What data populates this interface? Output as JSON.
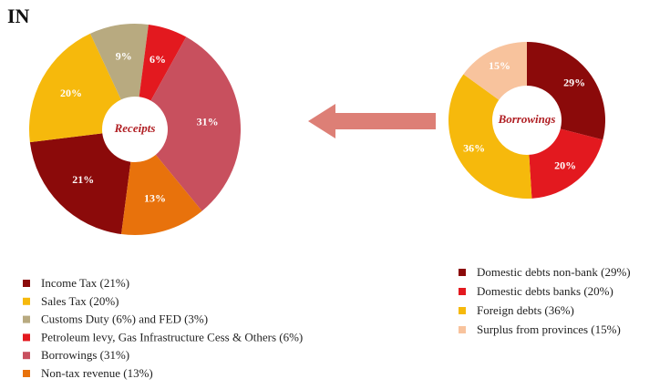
{
  "title": "IN",
  "chart_data": [
    {
      "type": "donut",
      "center_label": "Receipts",
      "categories": [
        "Income Tax (21%)",
        "Sales Tax (20%)",
        "Customs Duty (6%) and FED (3%)",
        "Petroleum levy, Gas Infrastructure Cess & Others (6%)",
        "Borrowings (31%)",
        "Non-tax revenue (13%)"
      ],
      "values": [
        21,
        20,
        9,
        6,
        31,
        13
      ],
      "value_labels": [
        "21%",
        "20%",
        "9%",
        "6%",
        "31%",
        "13%"
      ],
      "colors": [
        "#8b0a0a",
        "#f6b90c",
        "#b8aa80",
        "#e3191f",
        "#c8505e",
        "#e8720c"
      ]
    },
    {
      "type": "donut",
      "center_label": "Borrowings",
      "categories": [
        "Domestic debts non-bank (29%)",
        "Domestic debts banks (20%)",
        "Foreign debts (36%)",
        "Surplus from provinces (15%)"
      ],
      "values": [
        29,
        20,
        36,
        15
      ],
      "value_labels": [
        "29%",
        "20%",
        "36%",
        "15%"
      ],
      "colors": [
        "#8b0a0a",
        "#e3191f",
        "#f6b90c",
        "#f8c39d"
      ]
    }
  ]
}
